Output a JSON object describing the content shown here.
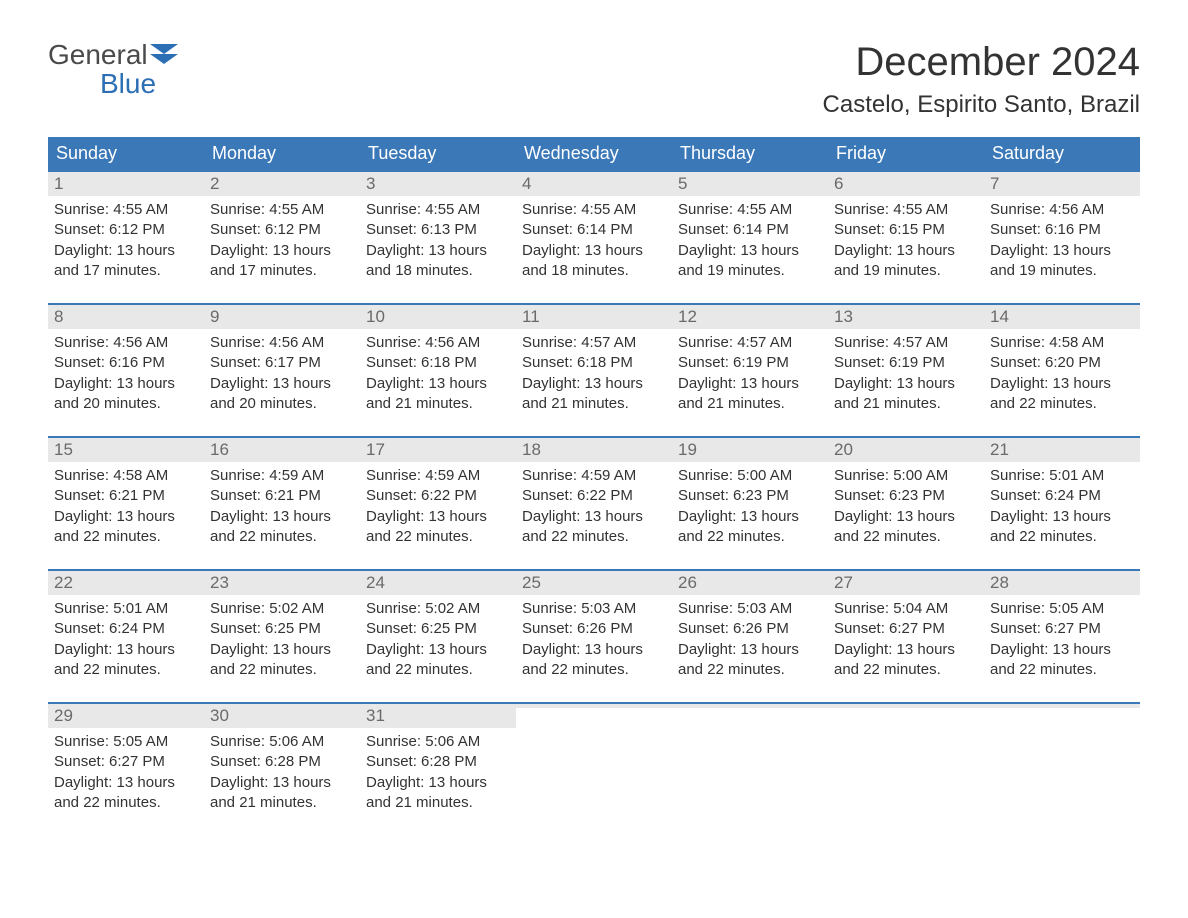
{
  "logo": {
    "general": "General",
    "blue": "Blue"
  },
  "title": "December 2024",
  "location": "Castelo, Espirito Santo, Brazil",
  "colors": {
    "header_bg": "#3b78b8",
    "header_text": "#ffffff",
    "daynum_bg": "#e8e8e8",
    "daynum_text": "#6a6a6a",
    "body_text": "#333333",
    "logo_gray": "#4a4a4a",
    "logo_blue": "#2d6fb5",
    "row_border": "#3b78b8",
    "page_bg": "#ffffff"
  },
  "typography": {
    "title_fontsize_pt": 30,
    "location_fontsize_pt": 18,
    "dow_fontsize_pt": 13,
    "daynum_fontsize_pt": 13,
    "body_fontsize_pt": 11
  },
  "dow": [
    "Sunday",
    "Monday",
    "Tuesday",
    "Wednesday",
    "Thursday",
    "Friday",
    "Saturday"
  ],
  "labels": {
    "sunrise": "Sunrise:",
    "sunset": "Sunset:",
    "daylight": "Daylight:"
  },
  "weeks": [
    [
      {
        "n": "1",
        "sunrise": "4:55 AM",
        "sunset": "6:12 PM",
        "daylight": "13 hours and 17 minutes."
      },
      {
        "n": "2",
        "sunrise": "4:55 AM",
        "sunset": "6:12 PM",
        "daylight": "13 hours and 17 minutes."
      },
      {
        "n": "3",
        "sunrise": "4:55 AM",
        "sunset": "6:13 PM",
        "daylight": "13 hours and 18 minutes."
      },
      {
        "n": "4",
        "sunrise": "4:55 AM",
        "sunset": "6:14 PM",
        "daylight": "13 hours and 18 minutes."
      },
      {
        "n": "5",
        "sunrise": "4:55 AM",
        "sunset": "6:14 PM",
        "daylight": "13 hours and 19 minutes."
      },
      {
        "n": "6",
        "sunrise": "4:55 AM",
        "sunset": "6:15 PM",
        "daylight": "13 hours and 19 minutes."
      },
      {
        "n": "7",
        "sunrise": "4:56 AM",
        "sunset": "6:16 PM",
        "daylight": "13 hours and 19 minutes."
      }
    ],
    [
      {
        "n": "8",
        "sunrise": "4:56 AM",
        "sunset": "6:16 PM",
        "daylight": "13 hours and 20 minutes."
      },
      {
        "n": "9",
        "sunrise": "4:56 AM",
        "sunset": "6:17 PM",
        "daylight": "13 hours and 20 minutes."
      },
      {
        "n": "10",
        "sunrise": "4:56 AM",
        "sunset": "6:18 PM",
        "daylight": "13 hours and 21 minutes."
      },
      {
        "n": "11",
        "sunrise": "4:57 AM",
        "sunset": "6:18 PM",
        "daylight": "13 hours and 21 minutes."
      },
      {
        "n": "12",
        "sunrise": "4:57 AM",
        "sunset": "6:19 PM",
        "daylight": "13 hours and 21 minutes."
      },
      {
        "n": "13",
        "sunrise": "4:57 AM",
        "sunset": "6:19 PM",
        "daylight": "13 hours and 21 minutes."
      },
      {
        "n": "14",
        "sunrise": "4:58 AM",
        "sunset": "6:20 PM",
        "daylight": "13 hours and 22 minutes."
      }
    ],
    [
      {
        "n": "15",
        "sunrise": "4:58 AM",
        "sunset": "6:21 PM",
        "daylight": "13 hours and 22 minutes."
      },
      {
        "n": "16",
        "sunrise": "4:59 AM",
        "sunset": "6:21 PM",
        "daylight": "13 hours and 22 minutes."
      },
      {
        "n": "17",
        "sunrise": "4:59 AM",
        "sunset": "6:22 PM",
        "daylight": "13 hours and 22 minutes."
      },
      {
        "n": "18",
        "sunrise": "4:59 AM",
        "sunset": "6:22 PM",
        "daylight": "13 hours and 22 minutes."
      },
      {
        "n": "19",
        "sunrise": "5:00 AM",
        "sunset": "6:23 PM",
        "daylight": "13 hours and 22 minutes."
      },
      {
        "n": "20",
        "sunrise": "5:00 AM",
        "sunset": "6:23 PM",
        "daylight": "13 hours and 22 minutes."
      },
      {
        "n": "21",
        "sunrise": "5:01 AM",
        "sunset": "6:24 PM",
        "daylight": "13 hours and 22 minutes."
      }
    ],
    [
      {
        "n": "22",
        "sunrise": "5:01 AM",
        "sunset": "6:24 PM",
        "daylight": "13 hours and 22 minutes."
      },
      {
        "n": "23",
        "sunrise": "5:02 AM",
        "sunset": "6:25 PM",
        "daylight": "13 hours and 22 minutes."
      },
      {
        "n": "24",
        "sunrise": "5:02 AM",
        "sunset": "6:25 PM",
        "daylight": "13 hours and 22 minutes."
      },
      {
        "n": "25",
        "sunrise": "5:03 AM",
        "sunset": "6:26 PM",
        "daylight": "13 hours and 22 minutes."
      },
      {
        "n": "26",
        "sunrise": "5:03 AM",
        "sunset": "6:26 PM",
        "daylight": "13 hours and 22 minutes."
      },
      {
        "n": "27",
        "sunrise": "5:04 AM",
        "sunset": "6:27 PM",
        "daylight": "13 hours and 22 minutes."
      },
      {
        "n": "28",
        "sunrise": "5:05 AM",
        "sunset": "6:27 PM",
        "daylight": "13 hours and 22 minutes."
      }
    ],
    [
      {
        "n": "29",
        "sunrise": "5:05 AM",
        "sunset": "6:27 PM",
        "daylight": "13 hours and 22 minutes."
      },
      {
        "n": "30",
        "sunrise": "5:06 AM",
        "sunset": "6:28 PM",
        "daylight": "13 hours and 21 minutes."
      },
      {
        "n": "31",
        "sunrise": "5:06 AM",
        "sunset": "6:28 PM",
        "daylight": "13 hours and 21 minutes."
      },
      {
        "empty": true
      },
      {
        "empty": true
      },
      {
        "empty": true
      },
      {
        "empty": true
      }
    ]
  ]
}
